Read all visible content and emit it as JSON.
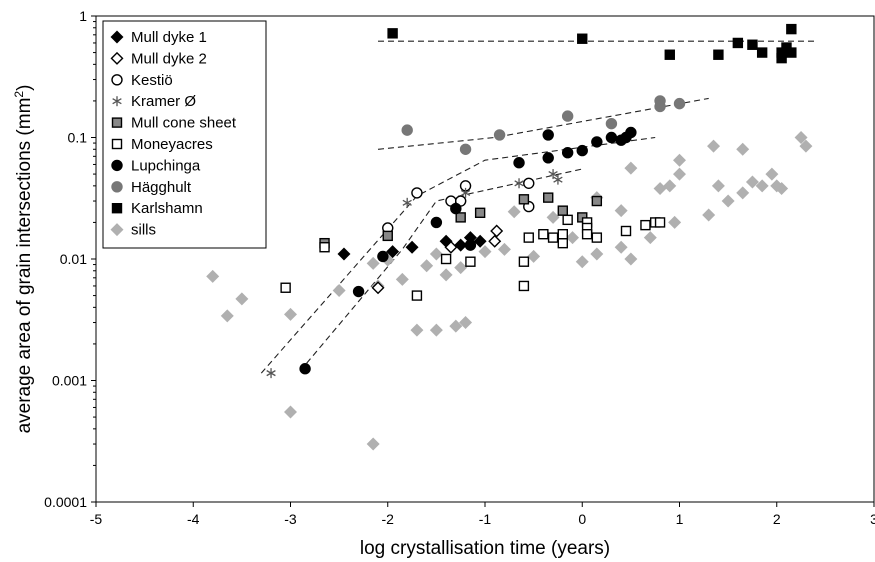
{
  "chart_data": {
    "type": "scatter",
    "xlabel": "log crystallisation time (years)",
    "ylabel_main": "average area of grain intersections (mm",
    "ylabel_sup": "2",
    "ylabel_end": ")",
    "xlim": [
      -5,
      3
    ],
    "ylim": [
      0.0001,
      1
    ],
    "yscale": "log",
    "grid": false,
    "legend_position": "top-left",
    "x_ticks": [
      -5,
      -4,
      -3,
      -2,
      -1,
      0,
      1,
      2,
      3
    ],
    "x_tick_labels": [
      "-5",
      "-4",
      "-3",
      "-2",
      "-1",
      "0",
      "1",
      "2",
      "3"
    ],
    "y_ticks": [
      0.0001,
      0.001,
      0.01,
      0.1,
      1
    ],
    "y_tick_labels": [
      "0.0001",
      "0.001",
      "0.01",
      "0.1",
      "1"
    ],
    "series": [
      {
        "name": "Mull dyke 1",
        "marker": "diamond",
        "fill": "#000000",
        "stroke": "#000000",
        "points": [
          [
            -2.45,
            0.011
          ],
          [
            -1.95,
            0.0115
          ],
          [
            -1.75,
            0.0125
          ],
          [
            -1.4,
            0.014
          ],
          [
            -1.25,
            0.013
          ],
          [
            -1.15,
            0.015
          ],
          [
            -1.05,
            0.014
          ]
        ]
      },
      {
        "name": "Mull dyke 2",
        "marker": "diamond",
        "fill": "#ffffff",
        "stroke": "#000000",
        "points": [
          [
            -2.1,
            0.0058
          ],
          [
            -1.35,
            0.0125
          ],
          [
            -0.9,
            0.014
          ],
          [
            -0.88,
            0.017
          ]
        ]
      },
      {
        "name": "Kestiö",
        "marker": "circle",
        "fill": "#ffffff",
        "stroke": "#000000",
        "points": [
          [
            -2.0,
            0.018
          ],
          [
            -1.7,
            0.035
          ],
          [
            -1.35,
            0.03
          ],
          [
            -1.25,
            0.03
          ],
          [
            -1.2,
            0.04
          ],
          [
            -0.55,
            0.027
          ],
          [
            -0.55,
            0.042
          ]
        ]
      },
      {
        "name": "Kramer Ø",
        "marker": "asterisk",
        "fill": "none",
        "stroke": "#555555",
        "points": [
          [
            -3.2,
            0.00115
          ],
          [
            -1.8,
            0.029
          ],
          [
            -1.2,
            0.035
          ],
          [
            -0.65,
            0.042
          ],
          [
            -0.3,
            0.05
          ],
          [
            -0.25,
            0.045
          ]
        ]
      },
      {
        "name": "Mull cone sheet",
        "marker": "square",
        "fill": "#888888",
        "stroke": "#000000",
        "points": [
          [
            -2.65,
            0.0135
          ],
          [
            -2.0,
            0.0155
          ],
          [
            -1.25,
            0.022
          ],
          [
            -1.05,
            0.024
          ],
          [
            -0.6,
            0.031
          ],
          [
            -0.35,
            0.032
          ],
          [
            -0.2,
            0.025
          ],
          [
            0.0,
            0.022
          ],
          [
            0.15,
            0.03
          ]
        ]
      },
      {
        "name": "Moneyacres",
        "marker": "square",
        "fill": "#ffffff",
        "stroke": "#000000",
        "points": [
          [
            -3.05,
            0.0058
          ],
          [
            -2.65,
            0.0125
          ],
          [
            -1.7,
            0.005
          ],
          [
            -1.4,
            0.01
          ],
          [
            -1.15,
            0.0095
          ],
          [
            -0.6,
            0.0095
          ],
          [
            -0.6,
            0.006
          ],
          [
            -0.55,
            0.015
          ],
          [
            -0.4,
            0.016
          ],
          [
            -0.3,
            0.015
          ],
          [
            -0.2,
            0.0135
          ],
          [
            -0.2,
            0.016
          ],
          [
            -0.15,
            0.021
          ],
          [
            0.05,
            0.02
          ],
          [
            0.05,
            0.018
          ],
          [
            0.05,
            0.016
          ],
          [
            0.15,
            0.015
          ],
          [
            0.45,
            0.017
          ],
          [
            0.65,
            0.019
          ],
          [
            0.75,
            0.02
          ],
          [
            0.8,
            0.02
          ]
        ]
      },
      {
        "name": "Lupchinga",
        "marker": "circle",
        "fill": "#000000",
        "stroke": "#000000",
        "points": [
          [
            -2.85,
            0.00125
          ],
          [
            -2.3,
            0.0054
          ],
          [
            -2.05,
            0.0105
          ],
          [
            -1.5,
            0.02
          ],
          [
            -1.3,
            0.026
          ],
          [
            -1.15,
            0.013
          ],
          [
            -0.65,
            0.062
          ],
          [
            -0.35,
            0.105
          ],
          [
            -0.35,
            0.068
          ],
          [
            -0.15,
            0.075
          ],
          [
            0.0,
            0.078
          ],
          [
            0.15,
            0.092
          ],
          [
            0.3,
            0.1
          ],
          [
            0.4,
            0.095
          ],
          [
            0.45,
            0.1
          ],
          [
            0.5,
            0.11
          ]
        ]
      },
      {
        "name": "Hägghult",
        "marker": "circle",
        "fill": "#777777",
        "stroke": "#777777",
        "points": [
          [
            -1.8,
            0.115
          ],
          [
            -1.2,
            0.08
          ],
          [
            -0.85,
            0.105
          ],
          [
            -0.15,
            0.15
          ],
          [
            0.3,
            0.13
          ],
          [
            0.8,
            0.2
          ],
          [
            0.8,
            0.18
          ],
          [
            1.0,
            0.19
          ]
        ]
      },
      {
        "name": "Karlshamn",
        "marker": "square",
        "fill": "#000000",
        "stroke": "#000000",
        "points": [
          [
            -1.95,
            0.72
          ],
          [
            0.0,
            0.65
          ],
          [
            0.9,
            0.48
          ],
          [
            1.4,
            0.48
          ],
          [
            1.6,
            0.6
          ],
          [
            1.75,
            0.58
          ],
          [
            1.85,
            0.5
          ],
          [
            2.05,
            0.45
          ],
          [
            2.05,
            0.5
          ],
          [
            2.1,
            0.55
          ],
          [
            2.15,
            0.5
          ],
          [
            2.15,
            0.78
          ]
        ]
      },
      {
        "name": "sills",
        "marker": "diamond",
        "fill": "#b0b0b0",
        "stroke": "#b0b0b0",
        "points": [
          [
            -3.8,
            0.0072
          ],
          [
            -3.65,
            0.0034
          ],
          [
            -3.5,
            0.0047
          ],
          [
            -3.0,
            0.0035
          ],
          [
            -3.0,
            0.00055
          ],
          [
            -2.5,
            0.0055
          ],
          [
            -2.15,
            0.0092
          ],
          [
            -2.15,
            0.0003
          ],
          [
            -2.1,
            0.006
          ],
          [
            -2.0,
            0.0098
          ],
          [
            -1.85,
            0.0068
          ],
          [
            -1.7,
            0.0026
          ],
          [
            -1.6,
            0.0088
          ],
          [
            -1.5,
            0.0026
          ],
          [
            -1.5,
            0.011
          ],
          [
            -1.4,
            0.0074
          ],
          [
            -1.3,
            0.0028
          ],
          [
            -1.25,
            0.0085
          ],
          [
            -1.2,
            0.003
          ],
          [
            -1.0,
            0.0115
          ],
          [
            -0.8,
            0.012
          ],
          [
            -0.7,
            0.0245
          ],
          [
            -0.5,
            0.0105
          ],
          [
            -0.3,
            0.022
          ],
          [
            -0.2,
            0.015
          ],
          [
            -0.1,
            0.015
          ],
          [
            0.0,
            0.0095
          ],
          [
            0.15,
            0.011
          ],
          [
            0.15,
            0.032
          ],
          [
            0.4,
            0.0125
          ],
          [
            0.4,
            0.025
          ],
          [
            0.5,
            0.01
          ],
          [
            0.5,
            0.056
          ],
          [
            0.7,
            0.015
          ],
          [
            0.8,
            0.038
          ],
          [
            0.9,
            0.04
          ],
          [
            0.95,
            0.02
          ],
          [
            1.0,
            0.065
          ],
          [
            1.0,
            0.05
          ],
          [
            1.3,
            0.023
          ],
          [
            1.35,
            0.085
          ],
          [
            1.4,
            0.04
          ],
          [
            1.5,
            0.03
          ],
          [
            1.65,
            0.035
          ],
          [
            1.65,
            0.08
          ],
          [
            1.75,
            0.043
          ],
          [
            1.85,
            0.04
          ],
          [
            1.95,
            0.05
          ],
          [
            2.0,
            0.04
          ],
          [
            2.05,
            0.038
          ],
          [
            2.25,
            0.1
          ],
          [
            2.3,
            0.085
          ]
        ]
      }
    ],
    "trend_lines": [
      {
        "points": [
          [
            -2.1,
            0.62
          ],
          [
            2.4,
            0.62
          ]
        ]
      },
      {
        "points": [
          [
            -2.1,
            0.08
          ],
          [
            -0.9,
            0.1
          ],
          [
            1.3,
            0.21
          ]
        ]
      },
      {
        "points": [
          [
            -3.3,
            0.00115
          ],
          [
            -1.7,
            0.033
          ],
          [
            -1.0,
            0.065
          ],
          [
            0.75,
            0.1
          ]
        ]
      },
      {
        "points": [
          [
            -2.9,
            0.0012
          ],
          [
            -1.85,
            0.012
          ],
          [
            -1.5,
            0.03
          ],
          [
            0.0,
            0.055
          ]
        ]
      }
    ]
  }
}
